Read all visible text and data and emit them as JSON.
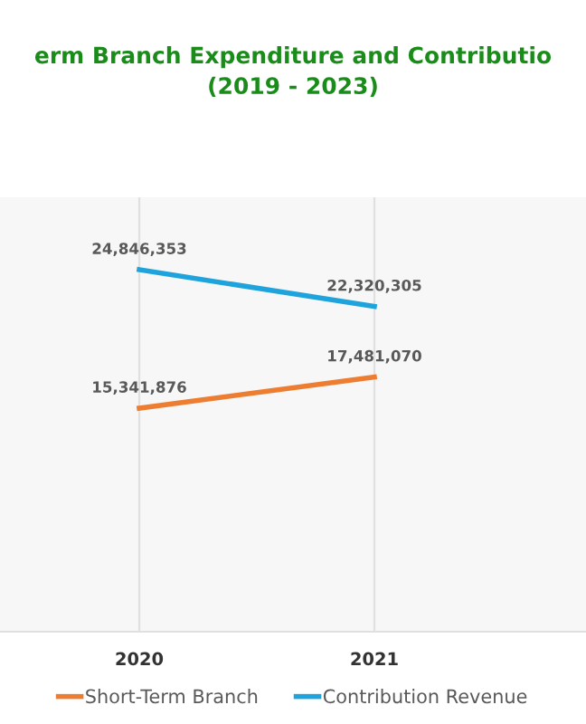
{
  "chart_data": {
    "type": "line",
    "title": "erm Branch Expenditure and Contributio\n(2019 - 2023)",
    "categories": [
      "2020",
      "2021"
    ],
    "series": [
      {
        "name": "Short-Term Branch",
        "color": "#ed7d31",
        "values": [
          15341876,
          17481070
        ],
        "value_labels": [
          "15,341,876",
          "17,481,070"
        ]
      },
      {
        "name": "Contribution Revenue",
        "color": "#1fa3dc",
        "values": [
          24846353,
          22320305
        ],
        "value_labels": [
          "24,846,353",
          "22,320,305"
        ]
      }
    ],
    "grid": "x",
    "legend": "bottom",
    "marker": "none",
    "line_style": "solid"
  }
}
